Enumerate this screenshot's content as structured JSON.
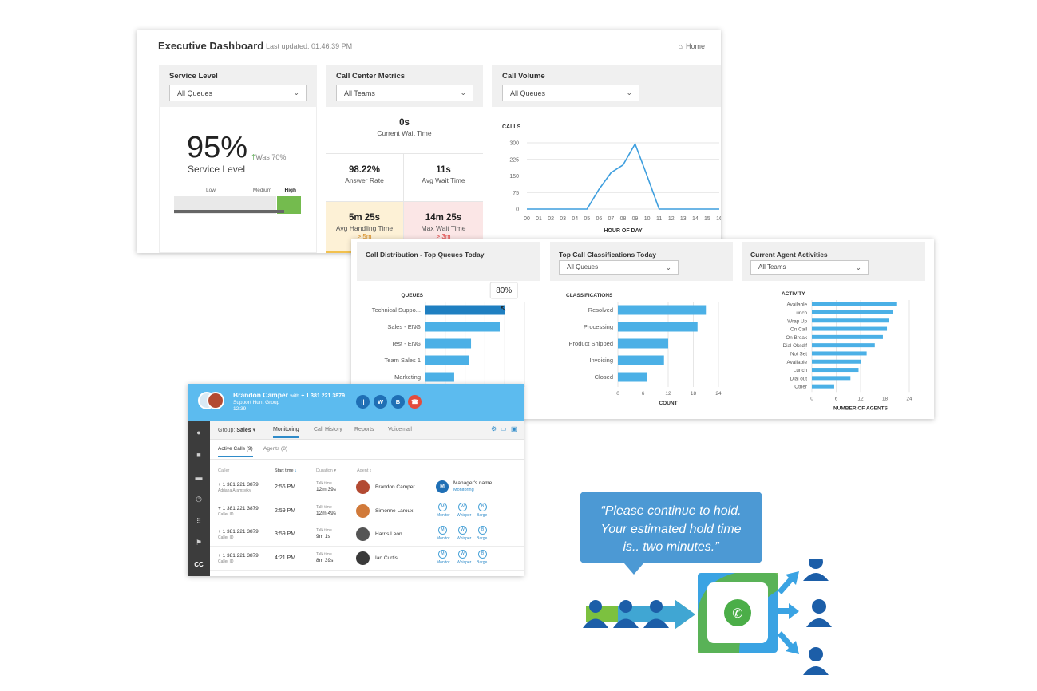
{
  "exec": {
    "title": "Executive Dashboard",
    "updated": "Last updated: 01:46:39 PM",
    "home": "Home",
    "service": {
      "title": "Service Level",
      "dropdown": "All Queues",
      "value": "95%",
      "was": "Was 70%",
      "label": "Service Level",
      "levels": [
        "Low",
        "Medium",
        "High"
      ],
      "level_index": 2
    },
    "metrics": {
      "title": "Call Center Metrics",
      "dropdown": "All Teams",
      "current_wait": {
        "value": "0s",
        "label": "Current Wait Time"
      },
      "answer_rate": {
        "value": "98.22%",
        "label": "Answer Rate"
      },
      "avg_wait": {
        "value": "11s",
        "label": "Avg Wait Time"
      },
      "avg_handling": {
        "value": "5m 25s",
        "label": "Avg Handling Time",
        "sub": "> 5m"
      },
      "max_wait": {
        "value": "14m 25s",
        "label": "Max Wait Time",
        "sub": "> 3m"
      }
    },
    "volume": {
      "title": "Call Volume",
      "dropdown": "All Queues",
      "ylabel": "CALLS",
      "xlabel": "HOUR OF DAY"
    }
  },
  "dist": {
    "title": "Call Distribution - Top Queues Today",
    "axis": "QUEUES",
    "tooltip": "80%"
  },
  "classes": {
    "title": "Top Call Classifications Today",
    "dropdown": "All Queues",
    "axis": "CLASSIFICATIONS",
    "xlabel": "COUNT"
  },
  "agents": {
    "title": "Current Agent Activities",
    "dropdown": "All Teams",
    "axis": "ACTIVITY",
    "xlabel": "NUMBER OF AGENTS"
  },
  "chart_data": [
    {
      "type": "line",
      "title": "Call Volume",
      "ylabel": "CALLS",
      "xlabel": "HOUR OF DAY",
      "x": [
        "00",
        "01",
        "02",
        "03",
        "04",
        "05",
        "06",
        "07",
        "08",
        "09",
        "10",
        "11",
        "12",
        "13",
        "14",
        "15",
        "16"
      ],
      "values": [
        0,
        0,
        0,
        0,
        0,
        0,
        90,
        165,
        200,
        295,
        150,
        0,
        0,
        0,
        0,
        0,
        0
      ],
      "yticks": [
        0,
        75,
        150,
        225,
        300
      ],
      "ylim": [
        0,
        300
      ]
    },
    {
      "type": "bar",
      "title": "Call Distribution - Top Queues Today",
      "categories": [
        "Technical Suppo...",
        "Sales - ENG",
        "Test - ENG",
        "Team Sales 1",
        "Marketing"
      ],
      "values": [
        80,
        75,
        46,
        44,
        29
      ],
      "ylim": [
        0,
        100
      ],
      "highlight": 0
    },
    {
      "type": "bar",
      "title": "Top Call Classifications Today",
      "xlabel": "COUNT",
      "categories": [
        "Resolved",
        "Processing",
        "Product Shipped",
        "Invoicing",
        "Closed"
      ],
      "values": [
        21,
        19,
        12,
        11,
        7
      ],
      "xticks": [
        0,
        6,
        12,
        18,
        24
      ],
      "ylim": [
        0,
        24
      ]
    },
    {
      "type": "bar",
      "title": "Current Agent Activities",
      "xlabel": "NUMBER OF AGENTS",
      "categories": [
        "Available",
        "Lunch",
        "Wrap Up",
        "On Call",
        "On Break",
        "Dial Oksdjf",
        "Not Set",
        "Available",
        "Lunch",
        "Dial out",
        "Other"
      ],
      "values": [
        21,
        20,
        19,
        18.5,
        17.5,
        15.5,
        13.5,
        12,
        11.5,
        9.5,
        5.5
      ],
      "xticks": [
        0,
        6,
        12,
        18,
        24
      ],
      "ylim": [
        0,
        24
      ]
    }
  ],
  "console": {
    "agent_name": "Brandon Camper",
    "with": "with",
    "phone": "+ 1 381 221 3879",
    "group_name": "Support Hunt Group",
    "timer": "12:39",
    "btn_hold": "||",
    "btn_w": "W",
    "btn_b": "B",
    "group_label": "Group:",
    "group_value": "Sales",
    "tabs": [
      "Monitoring",
      "Call History",
      "Reports",
      "Voicemail"
    ],
    "subtabs": [
      "Active Calls (9)",
      "Agents (8)"
    ],
    "columns": [
      "Caller",
      "Start time",
      "Duration",
      "Agent"
    ],
    "nav_last": "CC",
    "rows": [
      {
        "number": "+ 1 381 221 3879",
        "caller": "Adriana Aramsviky",
        "start": "2:56 PM",
        "talk_label": "Talk time",
        "talk": "12m 39s",
        "agent": "Brandon Camper",
        "avatar_color": "#b34a32",
        "manager_initial": "M",
        "manager": "Manager's name",
        "manager_status": "Monitoring"
      },
      {
        "number": "+ 1 381 221 3879",
        "caller": "Caller ID",
        "start": "2:59 PM",
        "talk_label": "Talk time",
        "talk": "12m 49s",
        "agent": "Simonne Laroux",
        "avatar_color": "#d17a3a"
      },
      {
        "number": "+ 1 381 221 3879",
        "caller": "Caller ID",
        "start": "3:59 PM",
        "talk_label": "Talk time",
        "talk": "9m 1s",
        "agent": "Harris Leon",
        "avatar_color": "#555555"
      },
      {
        "number": "+ 1 381 221 3879",
        "caller": "Caller ID",
        "start": "4:21 PM",
        "talk_label": "Talk time",
        "talk": "8m 39s",
        "agent": "Ian Curtis",
        "avatar_color": "#3a3a3a"
      }
    ],
    "actions": [
      "Monitor",
      "Whisper",
      "Barge"
    ],
    "action_icons": [
      "M",
      "W",
      "B"
    ]
  },
  "hold": {
    "line1": "“Please continue to hold.",
    "line2": "Your estimated hold time",
    "line3": "is.. two minutes.”"
  },
  "colors": {
    "accent": "#4bb0e6",
    "dark_bar": "#1f7fc1",
    "green": "#5fb53e",
    "blue_topbar": "#5cbbef",
    "red": "#e44b3c"
  }
}
